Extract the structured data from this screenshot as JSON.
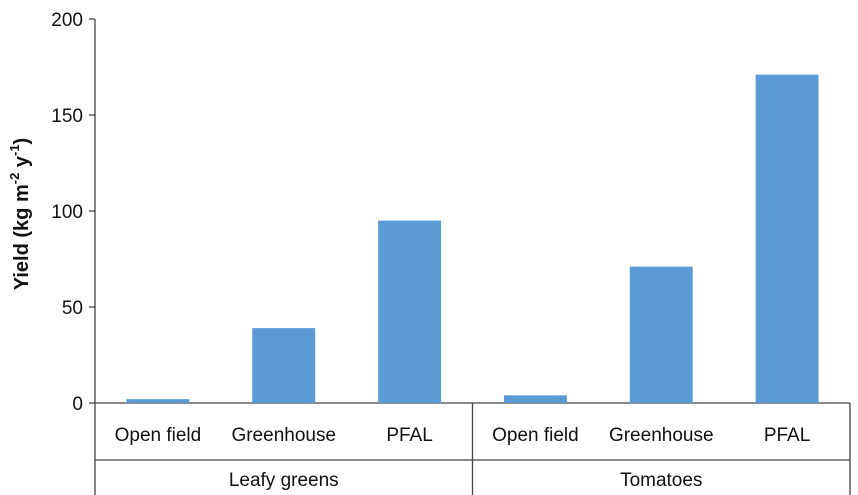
{
  "chart_data": {
    "type": "bar",
    "ylabel": {
      "prefix": "Yield (kg m",
      "sup1": "-2",
      "mid": " y",
      "sup2": "-1",
      "suffix": ")"
    },
    "ylim": [
      0,
      200
    ],
    "yticks": [
      0,
      50,
      100,
      150,
      200
    ],
    "grid": false,
    "bar_color": "#5B9BD5",
    "groups": [
      {
        "name": "Leafy greens",
        "categories": [
          "Open field",
          "Greenhouse",
          "PFAL"
        ],
        "values": [
          2,
          39,
          95
        ]
      },
      {
        "name": "Tomatoes",
        "categories": [
          "Open field",
          "Greenhouse",
          "PFAL"
        ],
        "values": [
          4,
          71,
          171
        ]
      }
    ]
  }
}
